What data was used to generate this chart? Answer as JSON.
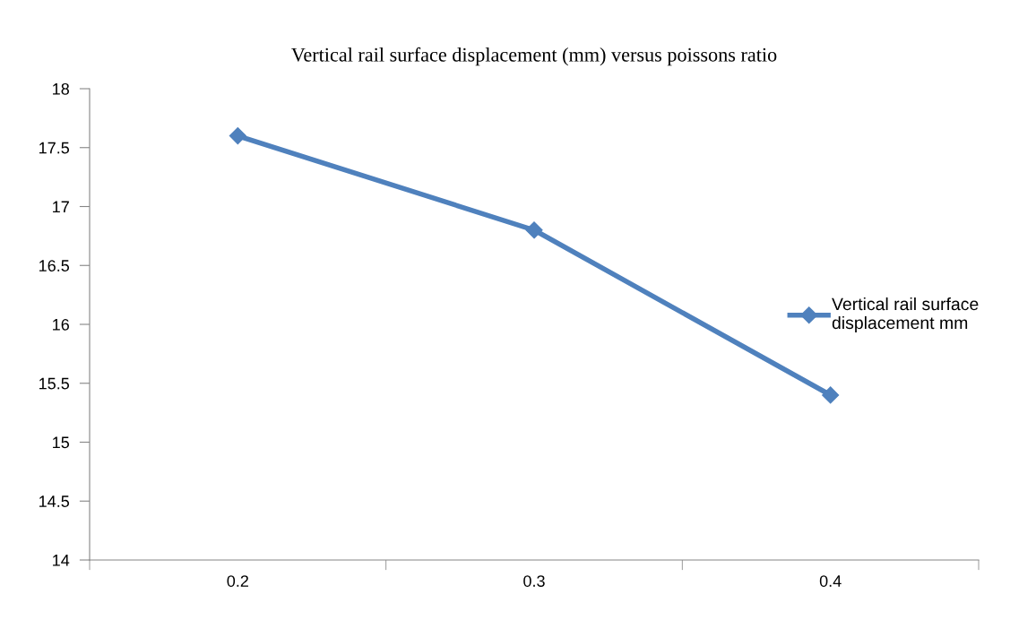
{
  "chart_data": {
    "type": "line",
    "title": "Vertical rail surface displacement (mm) versus poissons ratio",
    "categories": [
      "0.2",
      "0.3",
      "0.4"
    ],
    "series": [
      {
        "name": "Vertical rail surface\ndisplacement mm",
        "color": "#4f81bd",
        "values": [
          17.6,
          16.8,
          15.4
        ]
      }
    ],
    "ylim": [
      14,
      18
    ],
    "yticks": [
      14,
      14.5,
      15,
      15.5,
      16,
      16.5,
      17,
      17.5,
      18
    ],
    "grid": false,
    "legend": "right",
    "marker": "diamond",
    "line_style": "solid"
  }
}
